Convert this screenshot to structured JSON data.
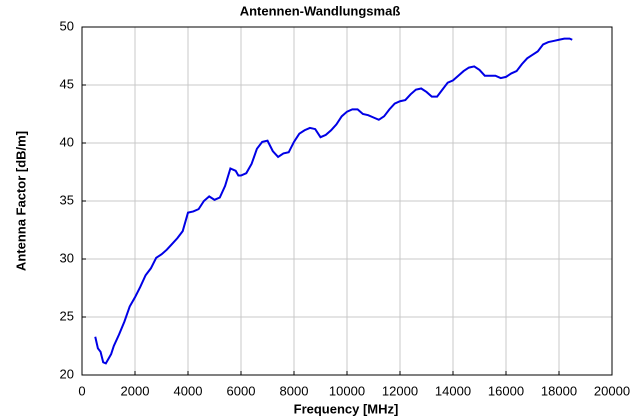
{
  "chart_data": {
    "type": "line",
    "title": "Antennen-Wandlungsmaß",
    "x_label": "Frequency [MHz]",
    "y_label": "Antenna Factor [dB/m]",
    "x": [
      500,
      600,
      700,
      800,
      900,
      1000,
      1100,
      1200,
      1400,
      1600,
      1800,
      2000,
      2200,
      2400,
      2600,
      2800,
      3000,
      3200,
      3400,
      3600,
      3800,
      4000,
      4200,
      4400,
      4600,
      4800,
      5000,
      5200,
      5400,
      5600,
      5800,
      5900,
      6000,
      6200,
      6400,
      6600,
      6800,
      7000,
      7200,
      7400,
      7600,
      7800,
      8000,
      8200,
      8400,
      8600,
      8800,
      9000,
      9200,
      9400,
      9600,
      9800,
      10000,
      10200,
      10400,
      10600,
      10800,
      11000,
      11200,
      11400,
      11600,
      11800,
      12000,
      12200,
      12400,
      12600,
      12800,
      13000,
      13200,
      13400,
      13600,
      13800,
      14000,
      14200,
      14400,
      14600,
      14800,
      15000,
      15200,
      15400,
      15600,
      15800,
      16000,
      16200,
      16400,
      16600,
      16800,
      17000,
      17200,
      17400,
      17600,
      17800,
      18000,
      18200,
      18400,
      18500
    ],
    "series": [
      {
        "color": "#0000e6",
        "values": [
          23.3,
          22.3,
          22.0,
          21.1,
          21.0,
          21.4,
          21.8,
          22.5,
          23.5,
          24.6,
          25.9,
          26.7,
          27.6,
          28.6,
          29.2,
          30.1,
          30.4,
          30.8,
          31.3,
          31.8,
          32.4,
          34.0,
          34.1,
          34.3,
          35.0,
          35.4,
          35.1,
          35.3,
          36.3,
          37.8,
          37.6,
          37.2,
          37.2,
          37.4,
          38.2,
          39.5,
          40.1,
          40.2,
          39.3,
          38.8,
          39.1,
          39.2,
          40.1,
          40.8,
          41.1,
          41.3,
          41.2,
          40.5,
          40.7,
          41.1,
          41.6,
          42.3,
          42.7,
          42.9,
          42.9,
          42.5,
          42.4,
          42.2,
          42.0,
          42.3,
          42.9,
          43.4,
          43.6,
          43.7,
          44.2,
          44.6,
          44.7,
          44.4,
          44.0,
          44.0,
          44.6,
          45.2,
          45.4,
          45.8,
          46.2,
          46.5,
          46.6,
          46.3,
          45.8,
          45.8,
          45.8,
          45.6,
          45.7,
          46.0,
          46.2,
          46.8,
          47.3,
          47.6,
          47.9,
          48.5,
          48.7,
          48.8,
          48.9,
          49.0,
          49.0,
          48.9
        ]
      }
    ],
    "xlim": [
      0,
      20000
    ],
    "xticks": [
      0,
      2000,
      4000,
      6000,
      8000,
      10000,
      12000,
      14000,
      16000,
      18000,
      20000
    ],
    "ylim": [
      20,
      50
    ],
    "yticks": [
      20,
      25,
      30,
      35,
      40,
      45,
      50
    ],
    "grid": true
  }
}
